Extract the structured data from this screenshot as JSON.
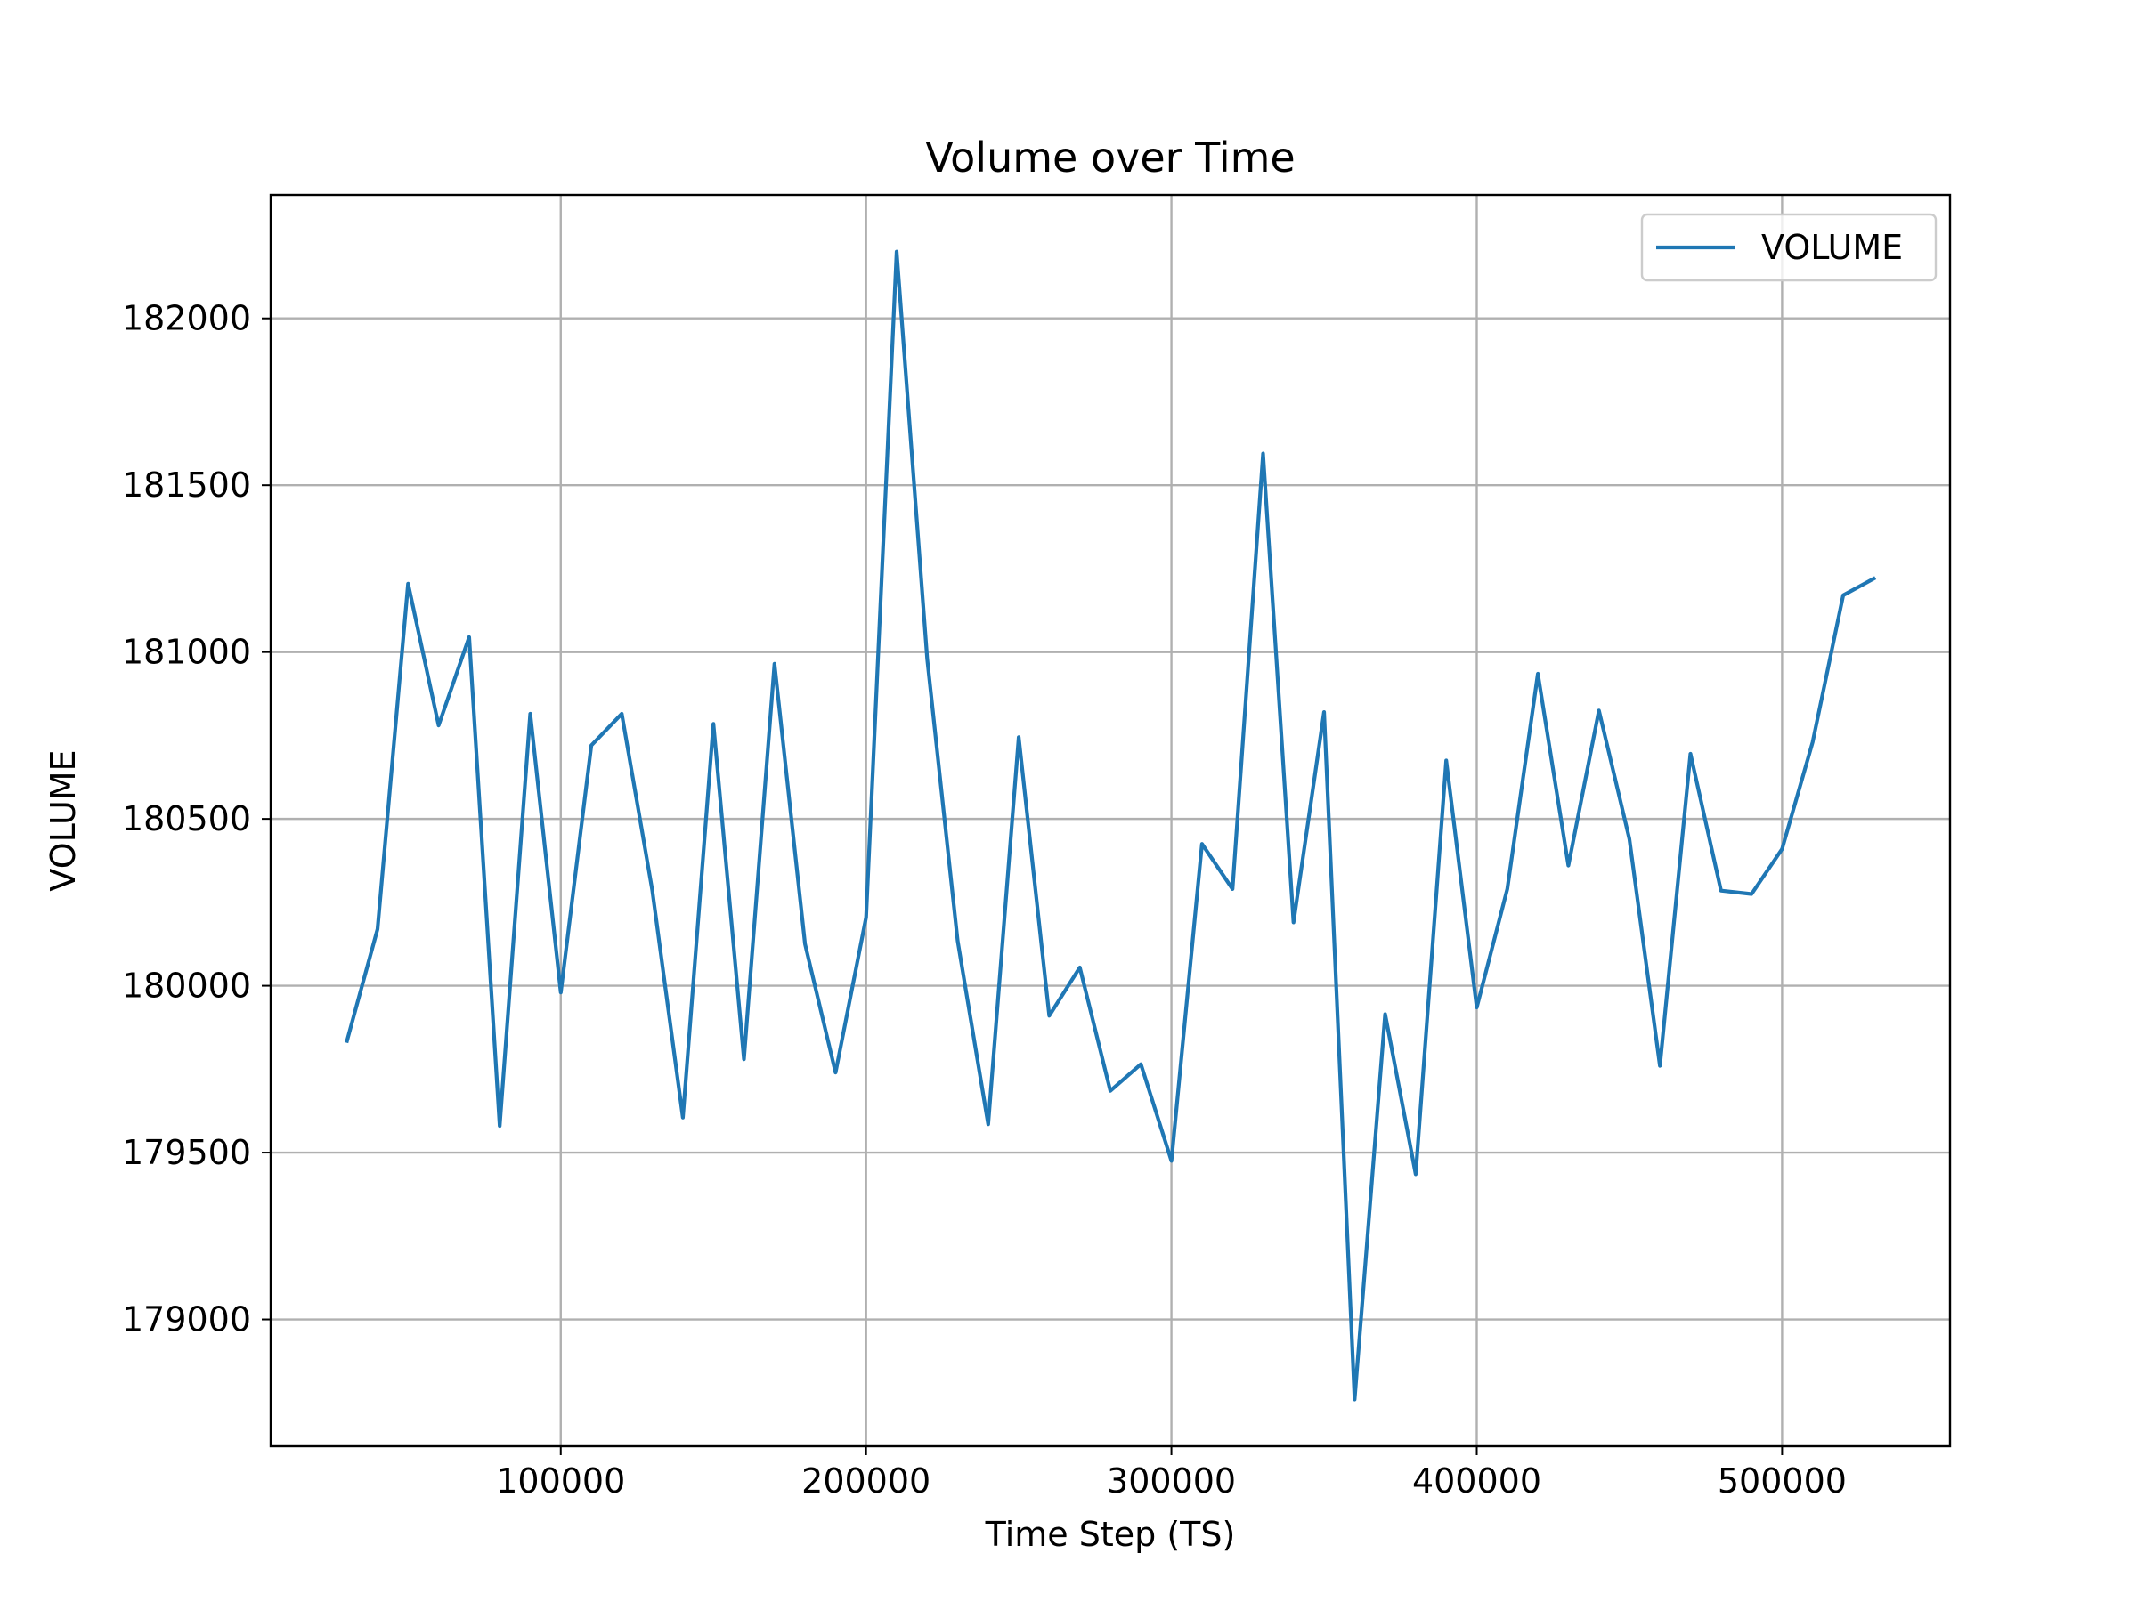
{
  "chart_data": {
    "type": "line",
    "title": "Volume over Time",
    "xlabel": "Time Step (TS)",
    "ylabel": "VOLUME",
    "xlim": [
      5000,
      555000
    ],
    "ylim": [
      178620,
      182370
    ],
    "xticks": [
      100000,
      200000,
      300000,
      400000,
      500000
    ],
    "yticks": [
      179000,
      179500,
      180000,
      180500,
      181000,
      181500,
      182000
    ],
    "grid": true,
    "legend_position": "top-right",
    "series": [
      {
        "name": "VOLUME",
        "color": "#1f77b4",
        "x": [
          30000,
          40000,
          50000,
          60000,
          70000,
          80000,
          90000,
          100000,
          110000,
          120000,
          130000,
          140000,
          150000,
          160000,
          170000,
          180000,
          190000,
          200000,
          210000,
          220000,
          230000,
          240000,
          250000,
          260000,
          270000,
          280000,
          290000,
          300000,
          310000,
          320000,
          330000,
          340000,
          350000,
          360000,
          370000,
          380000,
          390000,
          400000,
          410000,
          420000,
          430000,
          440000,
          450000,
          460000,
          470000,
          480000,
          490000,
          500000,
          510000,
          520000,
          530000
        ],
        "y": [
          179835,
          180170,
          181205,
          180780,
          181045,
          179580,
          180815,
          179980,
          180720,
          180815,
          180285,
          179605,
          180785,
          179780,
          180965,
          180125,
          179740,
          180205,
          182200,
          180980,
          180135,
          179585,
          180745,
          179910,
          180055,
          179685,
          179765,
          179475,
          180425,
          180290,
          181595,
          180190,
          180820,
          178760,
          179915,
          179435,
          180675,
          179935,
          180290,
          180935,
          180360,
          180825,
          180440,
          179760,
          180695,
          180285,
          180275,
          180410,
          180730,
          181170,
          181220
        ]
      }
    ]
  }
}
